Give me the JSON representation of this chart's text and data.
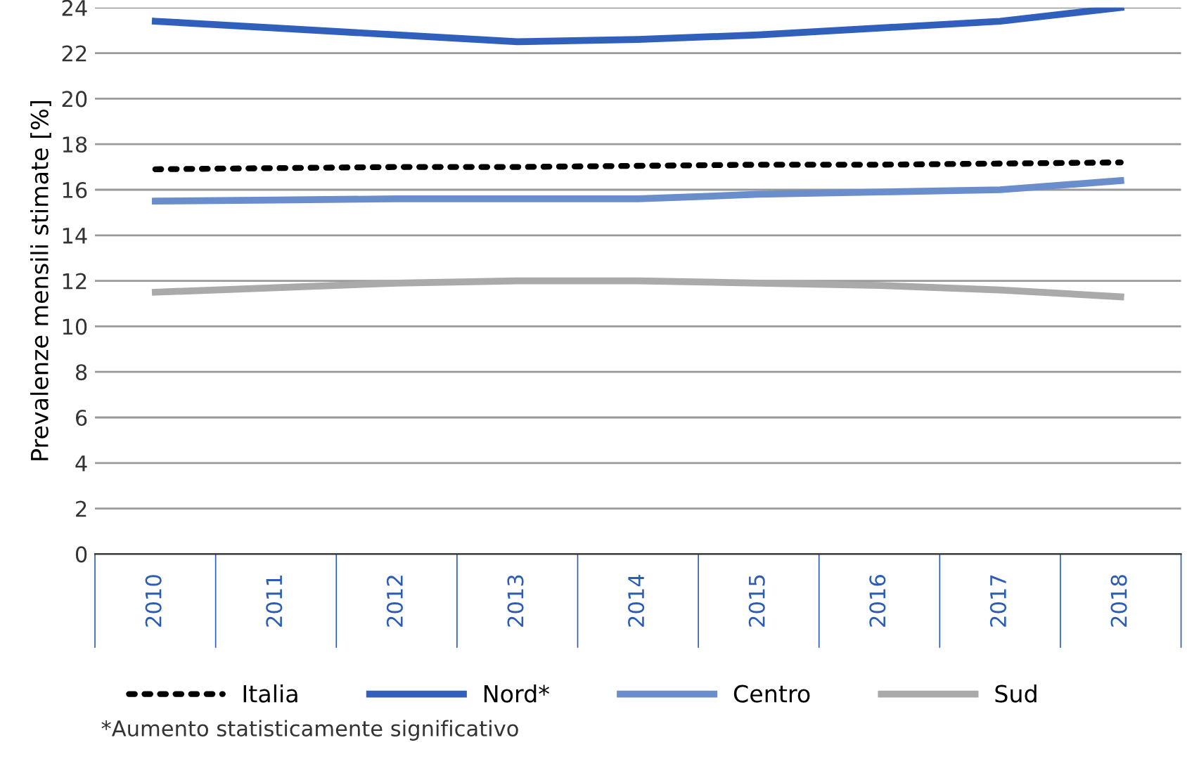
{
  "chart_data": {
    "type": "line",
    "ylabel": "Prevalenze mensili stimate [%]",
    "categories": [
      "2010",
      "2011",
      "2012",
      "2013",
      "2014",
      "2015",
      "2016",
      "2017",
      "2018"
    ],
    "series": [
      {
        "name": "Italia",
        "color": "#000000",
        "line_style": "dotted",
        "values": [
          16.9,
          16.95,
          17.0,
          17.0,
          17.05,
          17.1,
          17.1,
          17.15,
          17.2
        ]
      },
      {
        "name": "Nord*",
        "color": "#3060bb",
        "line_style": "solid",
        "values": [
          23.4,
          23.1,
          22.8,
          22.5,
          22.6,
          22.8,
          23.1,
          23.4,
          24.0
        ]
      },
      {
        "name": "Centro",
        "color": "#6a8ecc",
        "line_style": "solid",
        "values": [
          15.5,
          15.55,
          15.6,
          15.6,
          15.6,
          15.8,
          15.9,
          16.0,
          16.4
        ]
      },
      {
        "name": "Sud",
        "color": "#aaaaaa",
        "line_style": "solid",
        "values": [
          11.5,
          11.7,
          11.9,
          12.0,
          12.0,
          11.9,
          11.8,
          11.6,
          11.3
        ]
      }
    ],
    "ylim": [
      0,
      24
    ],
    "yticks": [
      0,
      2,
      4,
      6,
      8,
      10,
      12,
      14,
      16,
      18,
      20,
      22,
      24
    ],
    "grid": "y",
    "legend": "bottom",
    "marker": "none",
    "annotations": [
      "*Aumento statisticamente significativo"
    ]
  }
}
